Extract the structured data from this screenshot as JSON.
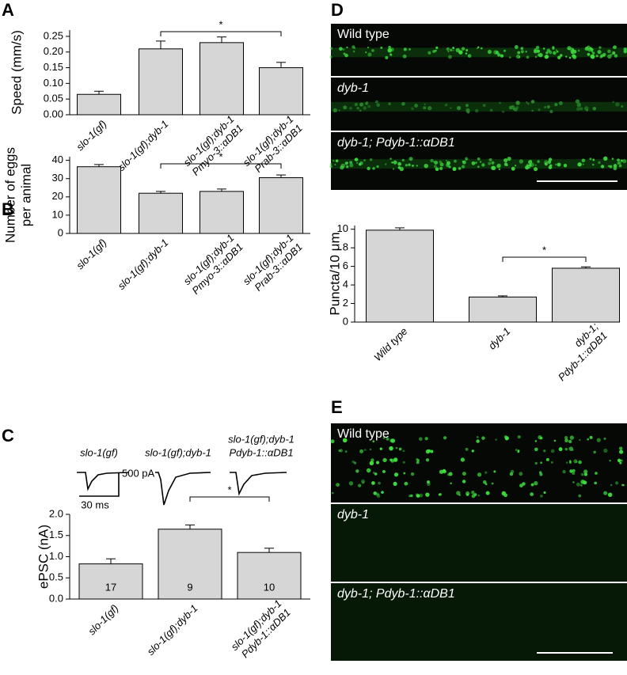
{
  "panels": [
    "A",
    "B",
    "C",
    "D",
    "E"
  ],
  "chart_data": [
    {
      "type": "bar",
      "y_label": [
        "Speed (mm/s)"
      ],
      "color": "#d6d6d6",
      "categories": [
        [
          "slo-1(gf)"
        ],
        [
          "slo-1(gf);dyb-1"
        ],
        [
          "slo-1(gf);dyb-1",
          "Pmyo-3::αDB1"
        ],
        [
          "slo-1(gf);dyb-1",
          "Prab-3::αDB1"
        ]
      ],
      "values": [
        0.065,
        0.21,
        0.23,
        0.15
      ],
      "errors": [
        0.01,
        0.025,
        0.018,
        0.017
      ],
      "ylim": [
        0,
        0.27
      ],
      "yticks": [
        {
          "value": 0,
          "label": "0.00"
        },
        {
          "value": 0.05,
          "label": "0.05"
        },
        {
          "value": 0.1,
          "label": "0.10"
        },
        {
          "value": 0.15,
          "label": "0.15"
        },
        {
          "value": 0.2,
          "label": "0.20"
        },
        {
          "value": 0.25,
          "label": "0.25"
        }
      ],
      "significance": {
        "from": 1,
        "to": 3,
        "label": "*"
      }
    },
    {
      "type": "bar",
      "y_label": [
        "Number of eggs",
        "per animal"
      ],
      "color": "#d6d6d6",
      "categories": [
        [
          "slo-1(gf)"
        ],
        [
          "slo-1(gf);dyb-1"
        ],
        [
          "slo-1(gf);dyb-1",
          "Pmyo-3::αDB1"
        ],
        [
          "slo-1(gf);dyb-1",
          "Prab-3::αDB1"
        ]
      ],
      "values": [
        36.5,
        22,
        23,
        30.5
      ],
      "errors": [
        1.2,
        1,
        1.3,
        1.5
      ],
      "ylim": [
        0,
        42
      ],
      "yticks": [
        0,
        10,
        20,
        30,
        40
      ],
      "significance": {
        "from": 1,
        "to": 3,
        "label": "*"
      }
    },
    {
      "type": "bar",
      "y_label": [
        "ePSC (nA)"
      ],
      "color": "#d6d6d6",
      "categories": [
        [
          "slo-1(gf)"
        ],
        [
          "slo-1(gf);dyb-1"
        ],
        [
          "slo-1(gf);dyb-1",
          "Pdyb-1::αDB1"
        ]
      ],
      "values": [
        0.83,
        1.65,
        1.1
      ],
      "errors": [
        0.12,
        0.1,
        0.1
      ],
      "n_labels": [
        17,
        9,
        10
      ],
      "ylim": [
        0,
        2.0
      ],
      "yticks": [
        {
          "value": 0,
          "label": "0.0"
        },
        {
          "value": 0.5,
          "label": "0.5"
        },
        {
          "value": 1,
          "label": "1.0"
        },
        {
          "value": 1.5,
          "label": "1.5"
        },
        {
          "value": 2,
          "label": "2.0"
        }
      ],
      "significance": {
        "from": 1,
        "to": 2,
        "label": "*"
      },
      "trace_labels": [
        [
          "slo-1(gf)"
        ],
        [
          "slo-1(gf);dyb-1"
        ],
        [
          "slo-1(gf);dyb-1",
          "Pdyb-1::αDB1"
        ]
      ],
      "scale_bar": {
        "time": "30 ms",
        "current": "500 pA"
      }
    },
    {
      "type": "bar",
      "y_label": [
        "Puncta/10 μm"
      ],
      "color": "#d6d6d6",
      "categories": [
        [
          "Wild type"
        ],
        [
          "dyb-1"
        ],
        [
          "dyb-1;",
          "Pdyb-1::αDB1"
        ]
      ],
      "values": [
        9.9,
        2.7,
        5.8
      ],
      "errors": [
        0.25,
        0.12,
        0.15
      ],
      "ylim": [
        0,
        10.4
      ],
      "yticks": [
        0,
        2,
        4,
        6,
        8,
        10
      ],
      "significance": {
        "from": 1,
        "to": 2,
        "label": "*"
      }
    }
  ],
  "panel_d_images": [
    "Wild type",
    "dyb-1",
    "dyb-1; Pdyb-1::αDB1"
  ],
  "panel_e_images": [
    "Wild type",
    "dyb-1",
    "dyb-1; Pdyb-1::αDB1"
  ]
}
